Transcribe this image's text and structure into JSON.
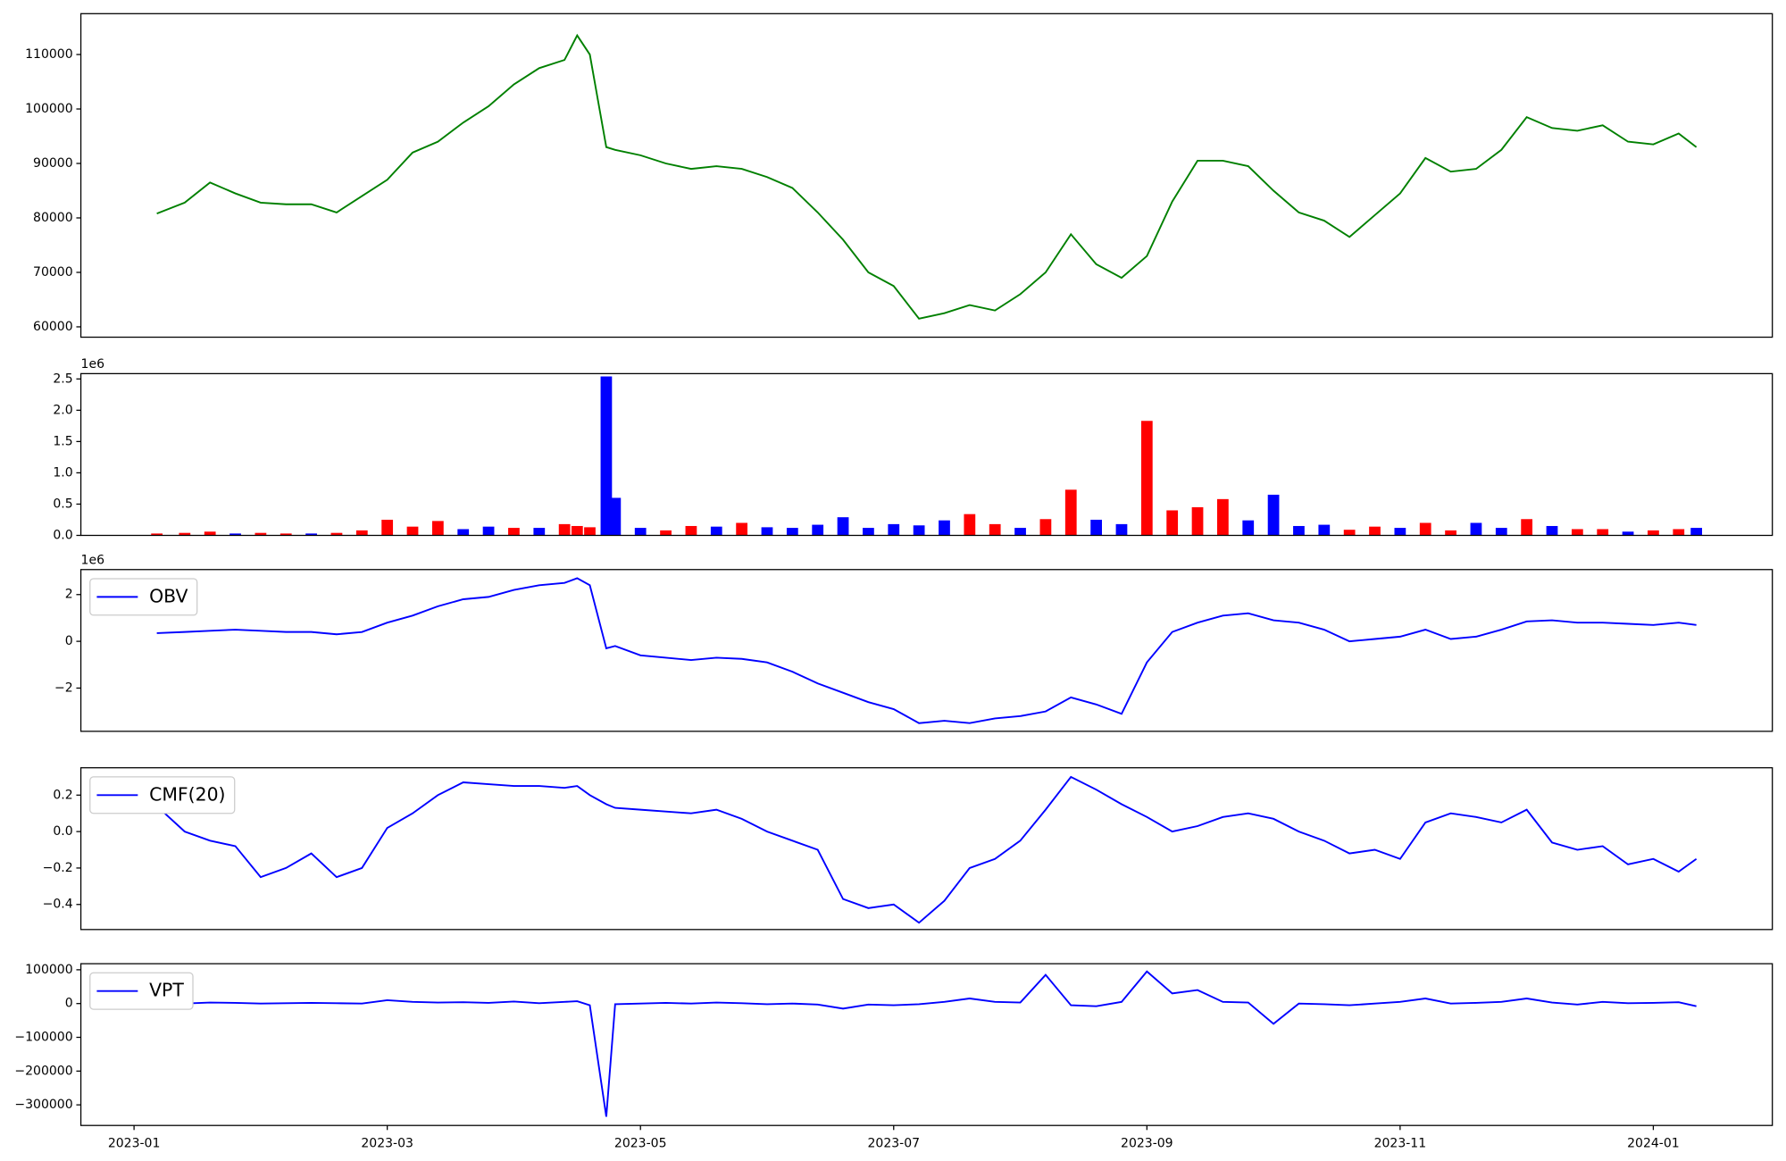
{
  "chart_data": [
    {
      "type": "line",
      "xlim": [
        -0.42,
        12.94
      ],
      "ylim": [
        58100,
        117500
      ],
      "yticks": [
        60000,
        70000,
        80000,
        90000,
        100000,
        110000
      ],
      "x": [
        0.18,
        0.4,
        0.6,
        0.8,
        1,
        1.2,
        1.4,
        1.6,
        1.8,
        2,
        2.2,
        2.4,
        2.6,
        2.8,
        3,
        3.2,
        3.4,
        3.5,
        3.6,
        3.73,
        3.8,
        4,
        4.2,
        4.4,
        4.6,
        4.8,
        5,
        5.2,
        5.4,
        5.6,
        5.8,
        6,
        6.2,
        6.4,
        6.6,
        6.8,
        7,
        7.2,
        7.4,
        7.6,
        7.8,
        8,
        8.2,
        8.4,
        8.6,
        8.8,
        9,
        9.2,
        9.4,
        9.6,
        9.8,
        10,
        10.2,
        10.4,
        10.6,
        10.8,
        11,
        11.2,
        11.4,
        11.6,
        11.8,
        12,
        12.2,
        12.34
      ],
      "series": [
        {
          "color": "#008000",
          "values": [
            80800,
            82800,
            86500,
            84500,
            82800,
            82500,
            82500,
            81000,
            84000,
            87000,
            92000,
            94000,
            97500,
            100500,
            104500,
            107500,
            109000,
            113500,
            110000,
            93000,
            92500,
            91500,
            90000,
            89000,
            89500,
            89000,
            87500,
            85500,
            81000,
            76000,
            70000,
            67500,
            61500,
            62500,
            64000,
            63000,
            66000,
            70000,
            77000,
            71500,
            69000,
            73000,
            83000,
            90500,
            90500,
            89500,
            85000,
            81000,
            79500,
            76500,
            80500,
            84500,
            91000,
            88500,
            89000,
            92500,
            98500,
            96500,
            96000,
            97000,
            94000,
            93500,
            95500,
            93000
          ]
        }
      ]
    },
    {
      "type": "bar",
      "xlim": [
        -0.42,
        12.94
      ],
      "ylim": [
        0,
        2.585
      ],
      "y_offset_text": "1e6",
      "yticks": [
        {
          "value": 0,
          "label": "0.0"
        },
        0.5,
        {
          "value": 1,
          "label": "1.0"
        },
        1.5,
        {
          "value": 2,
          "label": "2.0"
        },
        2.5
      ],
      "x": [
        0.18,
        0.4,
        0.6,
        0.8,
        1,
        1.2,
        1.4,
        1.6,
        1.8,
        2,
        2.2,
        2.4,
        2.6,
        2.8,
        3,
        3.2,
        3.4,
        3.5,
        3.6,
        3.73,
        3.8,
        4,
        4.2,
        4.4,
        4.6,
        4.8,
        5,
        5.2,
        5.4,
        5.6,
        5.8,
        6,
        6.2,
        6.4,
        6.6,
        6.8,
        7,
        7.2,
        7.4,
        7.6,
        7.8,
        8,
        8.2,
        8.4,
        8.6,
        8.8,
        9,
        9.2,
        9.4,
        9.6,
        9.8,
        10,
        10.2,
        10.4,
        10.6,
        10.8,
        11,
        11.2,
        11.4,
        11.6,
        11.8,
        12,
        12.2,
        12.34
      ],
      "values": [
        0.03,
        0.04,
        0.06,
        0.03,
        0.04,
        0.03,
        0.03,
        0.04,
        0.08,
        0.25,
        0.14,
        0.23,
        0.1,
        0.14,
        0.12,
        0.12,
        0.18,
        0.15,
        0.13,
        2.54,
        0.6,
        0.12,
        0.08,
        0.15,
        0.14,
        0.2,
        0.13,
        0.12,
        0.17,
        0.29,
        0.12,
        0.18,
        0.16,
        0.24,
        0.34,
        0.18,
        0.12,
        0.26,
        0.73,
        0.25,
        0.18,
        1.83,
        0.4,
        0.45,
        0.58,
        0.24,
        0.65,
        0.15,
        0.17,
        0.09,
        0.14,
        0.12,
        0.2,
        0.08,
        0.2,
        0.12,
        0.26,
        0.15,
        0.1,
        0.1,
        0.06,
        0.08,
        0.1,
        0.12
      ],
      "colors": [
        "#ff0000",
        "#ff0000",
        "#ff0000",
        "#0000ff",
        "#ff0000",
        "#ff0000",
        "#0000ff",
        "#ff0000",
        "#ff0000",
        "#ff0000",
        "#ff0000",
        "#ff0000",
        "#0000ff",
        "#0000ff",
        "#ff0000",
        "#0000ff",
        "#ff0000",
        "#ff0000",
        "#ff0000",
        "#0000ff",
        "#0000ff",
        "#0000ff",
        "#ff0000",
        "#ff0000",
        "#0000ff",
        "#ff0000",
        "#0000ff",
        "#0000ff",
        "#0000ff",
        "#0000ff",
        "#0000ff",
        "#0000ff",
        "#0000ff",
        "#0000ff",
        "#ff0000",
        "#ff0000",
        "#0000ff",
        "#ff0000",
        "#ff0000",
        "#0000ff",
        "#0000ff",
        "#ff0000",
        "#ff0000",
        "#ff0000",
        "#ff0000",
        "#0000ff",
        "#0000ff",
        "#0000ff",
        "#0000ff",
        "#ff0000",
        "#ff0000",
        "#0000ff",
        "#ff0000",
        "#ff0000",
        "#0000ff",
        "#0000ff",
        "#ff0000",
        "#0000ff",
        "#ff0000",
        "#ff0000",
        "#0000ff",
        "#ff0000",
        "#ff0000",
        "#0000ff"
      ]
    },
    {
      "type": "line",
      "xlim": [
        -0.42,
        12.94
      ],
      "ylim": [
        -3.85,
        3.07
      ],
      "y_offset_text": "1e6",
      "legend": "upper left",
      "yticks": [
        {
          "value": -2,
          "label": "−2"
        },
        0,
        2
      ],
      "x": [
        0.18,
        0.4,
        0.6,
        0.8,
        1,
        1.2,
        1.4,
        1.6,
        1.8,
        2,
        2.2,
        2.4,
        2.6,
        2.8,
        3,
        3.2,
        3.4,
        3.5,
        3.6,
        3.73,
        3.8,
        4,
        4.2,
        4.4,
        4.6,
        4.8,
        5,
        5.2,
        5.4,
        5.6,
        5.8,
        6,
        6.2,
        6.4,
        6.6,
        6.8,
        7,
        7.2,
        7.4,
        7.6,
        7.8,
        8,
        8.2,
        8.4,
        8.6,
        8.8,
        9,
        9.2,
        9.4,
        9.6,
        9.8,
        10,
        10.2,
        10.4,
        10.6,
        10.8,
        11,
        11.2,
        11.4,
        11.6,
        11.8,
        12,
        12.2,
        12.34
      ],
      "series": [
        {
          "name": "OBV",
          "color": "#0000ff",
          "values": [
            0.35,
            0.4,
            0.45,
            0.5,
            0.45,
            0.4,
            0.4,
            0.3,
            0.4,
            0.8,
            1.1,
            1.5,
            1.8,
            1.9,
            2.2,
            2.4,
            2.5,
            2.7,
            2.4,
            -0.3,
            -0.2,
            -0.6,
            -0.7,
            -0.8,
            -0.7,
            -0.75,
            -0.9,
            -1.3,
            -1.8,
            -2.2,
            -2.6,
            -2.9,
            -3.5,
            -3.4,
            -3.5,
            -3.3,
            -3.2,
            -3.0,
            -2.4,
            -2.7,
            -3.1,
            -0.9,
            0.4,
            0.8,
            1.1,
            1.2,
            0.9,
            0.8,
            0.5,
            0.0,
            0.1,
            0.2,
            0.5,
            0.1,
            0.2,
            0.5,
            0.85,
            0.9,
            0.8,
            0.8,
            0.75,
            0.7,
            0.8,
            0.7
          ]
        }
      ]
    },
    {
      "type": "line",
      "xlim": [
        -0.42,
        12.94
      ],
      "ylim": [
        -0.5375,
        0.35
      ],
      "legend": "upper left",
      "yticks": [
        {
          "value": -0.4,
          "label": "−0.4"
        },
        {
          "value": -0.2,
          "label": "−0.2"
        },
        {
          "value": 0,
          "label": "0.0"
        },
        0.2
      ],
      "x": [
        0.18,
        0.4,
        0.6,
        0.8,
        1,
        1.2,
        1.4,
        1.6,
        1.8,
        2,
        2.2,
        2.4,
        2.6,
        2.8,
        3,
        3.2,
        3.4,
        3.5,
        3.6,
        3.73,
        3.8,
        4,
        4.2,
        4.4,
        4.6,
        4.8,
        5,
        5.2,
        5.4,
        5.6,
        5.8,
        6,
        6.2,
        6.4,
        6.6,
        6.8,
        7,
        7.2,
        7.4,
        7.6,
        7.8,
        8,
        8.2,
        8.4,
        8.6,
        8.8,
        9,
        9.2,
        9.4,
        9.6,
        9.8,
        10,
        10.2,
        10.4,
        10.6,
        10.8,
        11,
        11.2,
        11.4,
        11.6,
        11.8,
        12,
        12.2,
        12.34
      ],
      "series": [
        {
          "name": "CMF(20)",
          "color": "#0000ff",
          "values": [
            0.14,
            0.0,
            -0.05,
            -0.08,
            -0.25,
            -0.2,
            -0.12,
            -0.25,
            -0.2,
            0.02,
            0.1,
            0.2,
            0.27,
            0.26,
            0.25,
            0.25,
            0.24,
            0.25,
            0.2,
            0.15,
            0.13,
            0.12,
            0.11,
            0.1,
            0.12,
            0.07,
            0.0,
            -0.05,
            -0.1,
            -0.37,
            -0.42,
            -0.4,
            -0.5,
            -0.38,
            -0.2,
            -0.15,
            -0.05,
            0.12,
            0.3,
            0.23,
            0.15,
            0.08,
            0.0,
            0.03,
            0.08,
            0.1,
            0.07,
            0.0,
            -0.05,
            -0.12,
            -0.1,
            -0.15,
            0.05,
            0.1,
            0.08,
            0.05,
            0.12,
            -0.06,
            -0.1,
            -0.08,
            -0.18,
            -0.15,
            -0.22,
            -0.15
          ]
        }
      ]
    },
    {
      "type": "line",
      "xlim": [
        -0.42,
        12.94
      ],
      "ylim": [
        -361000,
        118000
      ],
      "legend": "upper left",
      "yticks": [
        {
          "value": -300000,
          "label": "−300000"
        },
        {
          "value": -200000,
          "label": "−200000"
        },
        {
          "value": -100000,
          "label": "−100000"
        },
        0,
        100000
      ],
      "xticks": [
        {
          "value": 0,
          "label": "2023-01"
        },
        {
          "value": 2,
          "label": "2023-03"
        },
        {
          "value": 4,
          "label": "2023-05"
        },
        {
          "value": 6,
          "label": "2023-07"
        },
        {
          "value": 8,
          "label": "2023-09"
        },
        {
          "value": 10,
          "label": "2023-11"
        },
        {
          "value": 12,
          "label": "2024-01"
        }
      ],
      "x": [
        0.18,
        0.4,
        0.6,
        0.8,
        1,
        1.2,
        1.4,
        1.6,
        1.8,
        2,
        2.2,
        2.4,
        2.6,
        2.8,
        3,
        3.2,
        3.4,
        3.5,
        3.6,
        3.73,
        3.8,
        4,
        4.2,
        4.4,
        4.6,
        4.8,
        5,
        5.2,
        5.4,
        5.6,
        5.8,
        6,
        6.2,
        6.4,
        6.6,
        6.8,
        7,
        7.2,
        7.4,
        7.6,
        7.8,
        8,
        8.2,
        8.4,
        8.6,
        8.8,
        9,
        9.2,
        9.4,
        9.6,
        9.8,
        10,
        10.2,
        10.4,
        10.6,
        10.8,
        11,
        11.2,
        11.4,
        11.6,
        11.8,
        12,
        12.2,
        12.34
      ],
      "series": [
        {
          "name": "VPT",
          "color": "#0000ff",
          "values": [
            -2000,
            0,
            3000,
            2000,
            0,
            1000,
            2000,
            1000,
            0,
            10000,
            5000,
            3000,
            4000,
            2000,
            6000,
            1000,
            5000,
            7000,
            -5000,
            -335000,
            -2000,
            0,
            2000,
            0,
            3000,
            1000,
            -2000,
            0,
            -3000,
            -15000,
            -3000,
            -5000,
            -2000,
            5000,
            15000,
            5000,
            3000,
            85000,
            -5000,
            -8000,
            5000,
            95000,
            30000,
            40000,
            5000,
            3000,
            -60000,
            0,
            -2000,
            -5000,
            0,
            5000,
            15000,
            0,
            2000,
            5000,
            15000,
            3000,
            -3000,
            5000,
            1000,
            2000,
            4000,
            -8000
          ]
        }
      ]
    }
  ]
}
